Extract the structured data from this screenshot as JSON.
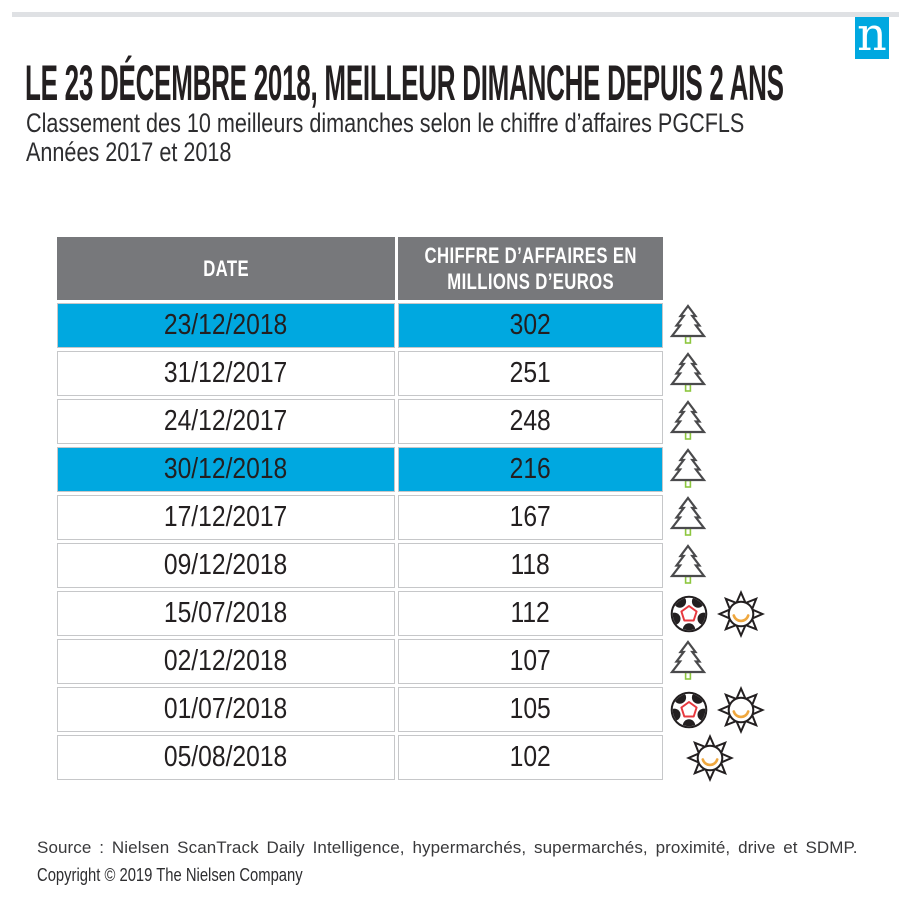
{
  "header": {
    "logo_letter": "n",
    "title": "LE 23 DÉCEMBRE 2018, MEILLEUR DIMANCHE DEPUIS 2 ANS",
    "subtitle_line1": "Classement des 10 meilleurs dimanches selon le chiffre d’affaires PGCFLS",
    "subtitle_line2": "Années 2017 et 2018"
  },
  "table": {
    "col_date": "DATE",
    "col_value_line1": "CHIFFRE D’AFFAIRES EN",
    "col_value_line2": "MILLIONS D’EUROS",
    "rows": [
      {
        "date": "23/12/2018",
        "value": "302",
        "highlight": true,
        "icons": [
          "christmas-tree"
        ]
      },
      {
        "date": "31/12/2017",
        "value": "251",
        "highlight": false,
        "icons": [
          "christmas-tree"
        ]
      },
      {
        "date": "24/12/2017",
        "value": "248",
        "highlight": false,
        "icons": [
          "christmas-tree"
        ]
      },
      {
        "date": "30/12/2018",
        "value": "216",
        "highlight": true,
        "icons": [
          "christmas-tree"
        ]
      },
      {
        "date": "17/12/2017",
        "value": "167",
        "highlight": false,
        "icons": [
          "christmas-tree"
        ]
      },
      {
        "date": "09/12/2018",
        "value": "118",
        "highlight": false,
        "icons": [
          "christmas-tree"
        ]
      },
      {
        "date": "15/07/2018",
        "value": "112",
        "highlight": false,
        "icons": [
          "soccer-ball",
          "sun"
        ]
      },
      {
        "date": "02/12/2018",
        "value": "107",
        "highlight": false,
        "icons": [
          "christmas-tree"
        ]
      },
      {
        "date": "01/07/2018",
        "value": "105",
        "highlight": false,
        "icons": [
          "soccer-ball",
          "sun"
        ]
      },
      {
        "date": "05/08/2018",
        "value": "102",
        "highlight": false,
        "icons": [
          "sun"
        ]
      }
    ]
  },
  "footer": {
    "source": "Source : Nielsen ScanTrack Daily Intelligence, hypermarchés, supermarchés, proximité, drive et SDMP.",
    "copyright": "Copyright © 2019 The Nielsen Company"
  },
  "colors": {
    "highlight_blue": "#00a8e0",
    "header_gray": "#77787b",
    "cell_border": "#c6c7c9",
    "top_bar_gray": "#dfe1e4",
    "text_dark": "#231f20",
    "tree_outline": "#4a4a4c",
    "trunk_green": "#8dc63f",
    "ball_outline": "#231f20",
    "pentagon_red": "#e8393f",
    "sun_orange": "#efa73e"
  },
  "chart_data": {
    "type": "table",
    "title": "LE 23 DÉCEMBRE 2018, MEILLEUR DIMANCHE DEPUIS 2 ANS",
    "subtitle": "Classement des 10 meilleurs dimanches selon le chiffre d’affaires PGCFLS — Années 2017 et 2018",
    "columns": [
      "DATE",
      "CHIFFRE D’AFFAIRES EN MILLIONS D’EUROS"
    ],
    "rows": [
      [
        "23/12/2018",
        302
      ],
      [
        "31/12/2017",
        251
      ],
      [
        "24/12/2017",
        248
      ],
      [
        "30/12/2018",
        216
      ],
      [
        "17/12/2017",
        167
      ],
      [
        "09/12/2018",
        118
      ],
      [
        "15/07/2018",
        112
      ],
      [
        "02/12/2018",
        107
      ],
      [
        "01/07/2018",
        105
      ],
      [
        "05/08/2018",
        102
      ]
    ],
    "highlighted_rows": [
      "23/12/2018",
      "30/12/2018"
    ],
    "row_icons": [
      [
        "christmas-tree"
      ],
      [
        "christmas-tree"
      ],
      [
        "christmas-tree"
      ],
      [
        "christmas-tree"
      ],
      [
        "christmas-tree"
      ],
      [
        "christmas-tree"
      ],
      [
        "soccer-ball",
        "sun"
      ],
      [
        "christmas-tree"
      ],
      [
        "soccer-ball",
        "sun"
      ],
      [
        "sun"
      ]
    ]
  }
}
